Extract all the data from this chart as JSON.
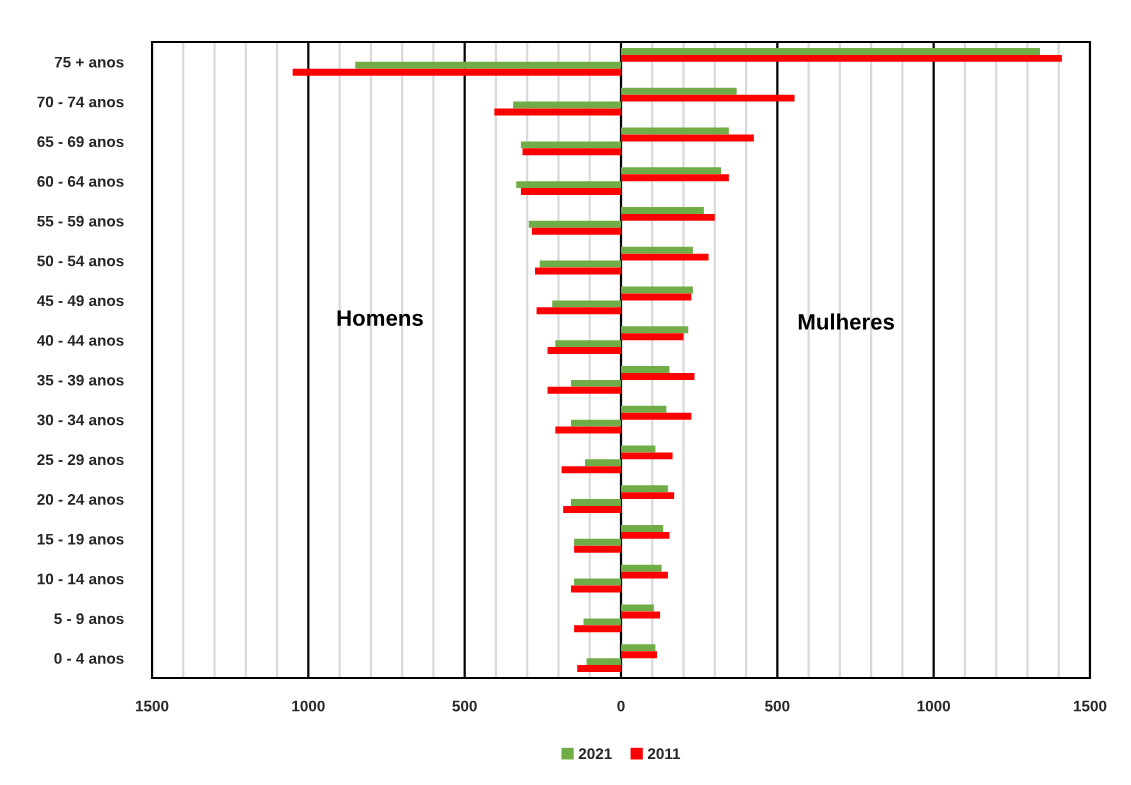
{
  "chart_data": {
    "type": "bar",
    "orientation": "horizontal",
    "categories": [
      "75 + anos",
      "70 - 74 anos",
      "65 - 69 anos",
      "60 - 64 anos",
      "55 - 59 anos",
      "50 - 54 anos",
      "45 - 49 anos",
      "40 - 44 anos",
      "35 - 39 anos",
      "30 - 34 anos",
      "25 - 29 anos",
      "20 - 24 anos",
      "15 - 19 anos",
      "10 - 14 anos",
      "5 - 9 anos",
      "0 - 4 anos"
    ],
    "series": [
      {
        "name": "2021",
        "color": "#70ad47",
        "values": [
          1340,
          370,
          345,
          320,
          265,
          230,
          230,
          215,
          155,
          145,
          110,
          150,
          135,
          130,
          105,
          110
        ]
      },
      {
        "name": "2011",
        "color": "#ff0000",
        "values": [
          1410,
          555,
          425,
          345,
          300,
          280,
          225,
          200,
          235,
          225,
          165,
          170,
          155,
          150,
          125,
          115
        ]
      },
      {
        "color": "#70ad47",
        "values": [
          -850,
          -345,
          -320,
          -335,
          -295,
          -260,
          -220,
          -210,
          -160,
          -160,
          -115,
          -160,
          -150,
          -150,
          -120,
          -110
        ]
      },
      {
        "color": "#ff0000",
        "values": [
          -1050,
          -405,
          -315,
          -320,
          -285,
          -275,
          -270,
          -235,
          -235,
          -210,
          -190,
          -185,
          -150,
          -160,
          -150,
          -140
        ]
      }
    ],
    "xlim": [
      -1500,
      1500
    ],
    "xticks": [
      {
        "value": -1500,
        "label": "1500"
      },
      {
        "value": -1400,
        "label": null
      },
      {
        "value": -1300,
        "label": null
      },
      {
        "value": -1200,
        "label": null
      },
      {
        "value": -1100,
        "label": null
      },
      {
        "value": -1000,
        "label": "1000"
      },
      {
        "value": -900,
        "label": null
      },
      {
        "value": -800,
        "label": null
      },
      {
        "value": -700,
        "label": null
      },
      {
        "value": -600,
        "label": null
      },
      {
        "value": -500,
        "label": "500"
      },
      {
        "value": -400,
        "label": null
      },
      {
        "value": -300,
        "label": null
      },
      {
        "value": -200,
        "label": null
      },
      {
        "value": -100,
        "label": null
      },
      0,
      {
        "value": 100,
        "label": null
      },
      {
        "value": 200,
        "label": null
      },
      {
        "value": 300,
        "label": null
      },
      {
        "value": 400,
        "label": null
      },
      500,
      {
        "value": 600,
        "label": null
      },
      {
        "value": 700,
        "label": null
      },
      {
        "value": 800,
        "label": null
      },
      {
        "value": 900,
        "label": null
      },
      1000,
      {
        "value": 1100,
        "label": null
      },
      {
        "value": 1200,
        "label": null
      },
      {
        "value": 1300,
        "label": null
      },
      {
        "value": 1400,
        "label": null
      },
      1500
    ],
    "grid": "x",
    "legend": "bottom",
    "annotations": [
      "Homens",
      "Mulheres"
    ]
  }
}
